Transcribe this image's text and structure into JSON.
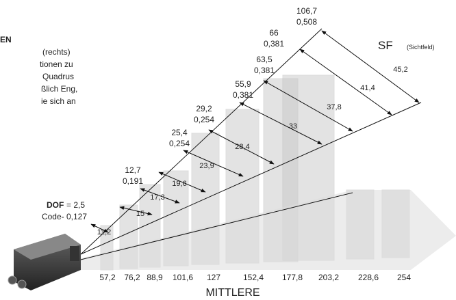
{
  "intro": {
    "heading": "EN",
    "lines": [
      "(rechts)",
      "tionen zu",
      "Quadrus",
      "ßlich Eng,",
      "ie sich an"
    ]
  },
  "dof": {
    "label": "DOF",
    "value": "= 2,5"
  },
  "code": "Code- 0,127",
  "sf": {
    "label": "SF",
    "note": "(Sichtfeld)"
  },
  "depth_labels": [
    {
      "top": "106,7",
      "bottom": "0,508"
    },
    {
      "top": "66",
      "bottom": "0,381"
    },
    {
      "top": "63,5",
      "bottom": "0,381"
    },
    {
      "top": "55,9",
      "bottom": "0,381"
    },
    {
      "top": "29,2",
      "bottom": "0,254"
    },
    {
      "top": "25,4",
      "bottom": "0,254"
    },
    {
      "top": "12,7",
      "bottom": "0,191"
    }
  ],
  "field_widths": [
    "11,2",
    "15",
    "17,3",
    "19,6",
    "23,9",
    "28,4",
    "33",
    "37,8",
    "41,4",
    "45,2"
  ],
  "distances": [
    "57,2",
    "76,2",
    "88,9",
    "101,6",
    "127",
    "152,4",
    "177,8",
    "203,2",
    "228,6",
    "254"
  ],
  "axis_label": "MITTLERE"
}
